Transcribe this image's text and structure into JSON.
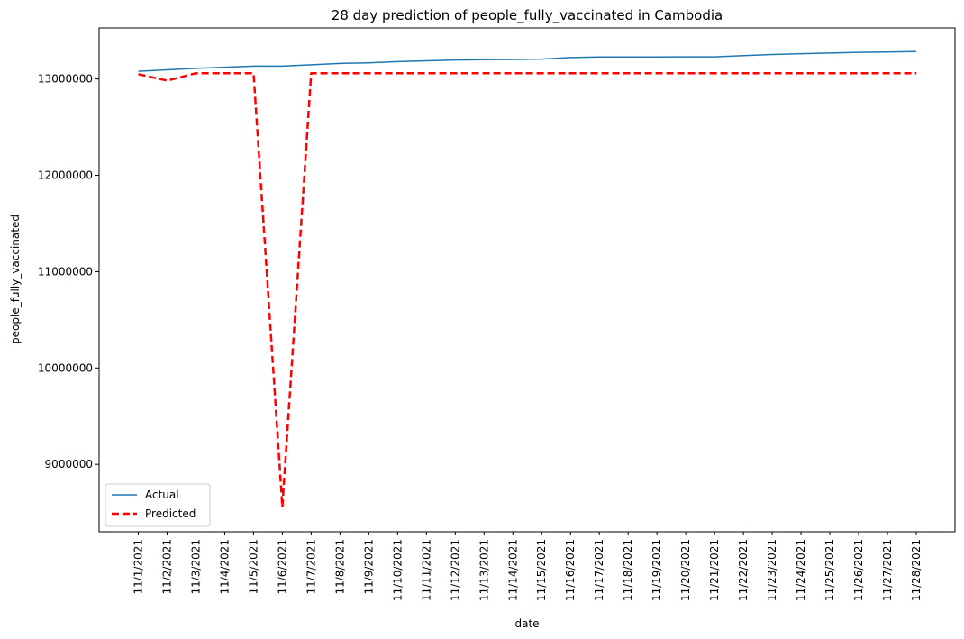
{
  "chart_data": {
    "type": "line",
    "title": "28 day prediction of people_fully_vaccinated in Cambodia",
    "xlabel": "date",
    "ylabel": "people_fully_vaccinated",
    "categories": [
      "11/1/2021",
      "11/2/2021",
      "11/3/2021",
      "11/4/2021",
      "11/5/2021",
      "11/6/2021",
      "11/7/2021",
      "11/8/2021",
      "11/9/2021",
      "11/10/2021",
      "11/11/2021",
      "11/12/2021",
      "11/13/2021",
      "11/14/2021",
      "11/15/2021",
      "11/16/2021",
      "11/17/2021",
      "11/18/2021",
      "11/19/2021",
      "11/20/2021",
      "11/21/2021",
      "11/22/2021",
      "11/23/2021",
      "11/24/2021",
      "11/25/2021",
      "11/26/2021",
      "11/27/2021",
      "11/28/2021"
    ],
    "yticks": [
      9000000,
      10000000,
      11000000,
      12000000,
      13000000
    ],
    "ylim": [
      8300000,
      13530000
    ],
    "grid": false,
    "legend_position": "bottom-left",
    "series": [
      {
        "name": "Actual",
        "color": "#1f77b4",
        "style": "solid",
        "values": [
          13080000,
          13095000,
          13110000,
          13122000,
          13133000,
          13134000,
          13148000,
          13162000,
          13168000,
          13180000,
          13189000,
          13197000,
          13200000,
          13202000,
          13206000,
          13222000,
          13228000,
          13228000,
          13228000,
          13229000,
          13230000,
          13242000,
          13254000,
          13262000,
          13269000,
          13276000,
          13280000,
          13285000
        ]
      },
      {
        "name": "Predicted",
        "color": "#ff0000",
        "style": "dashed",
        "values": [
          13050000,
          12983000,
          13060000,
          13060000,
          13060000,
          8560000,
          13060000,
          13060000,
          13060000,
          13060000,
          13060000,
          13060000,
          13060000,
          13060000,
          13060000,
          13060000,
          13060000,
          13060000,
          13060000,
          13060000,
          13060000,
          13060000,
          13060000,
          13060000,
          13060000,
          13060000,
          13060000,
          13060000
        ]
      }
    ]
  }
}
